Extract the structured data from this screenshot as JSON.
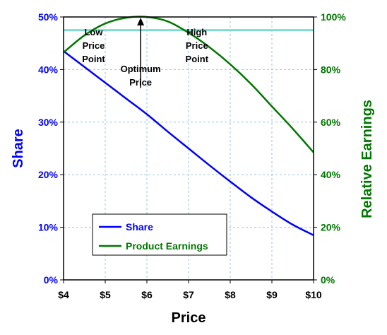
{
  "chart_data": {
    "type": "line",
    "xlabel": "Price",
    "ylabel_left": "Share",
    "ylabel_right": "Relative Earnings",
    "x_ticks": [
      "$4",
      "$5",
      "$6",
      "$7",
      "$8",
      "$9",
      "$10"
    ],
    "xlim": [
      4,
      10
    ],
    "ylim_left": [
      0,
      50
    ],
    "ylim_right": [
      0,
      100
    ],
    "y_ticks_left": [
      "0%",
      "10%",
      "20%",
      "30%",
      "40%",
      "50%"
    ],
    "y_ticks_right": [
      "0%",
      "20%",
      "40%",
      "60%",
      "80%",
      "100%"
    ],
    "grid": true,
    "legend_placement": "bottom-left",
    "colors": {
      "share": "#0000ff",
      "earnings": "#007700",
      "reference": "#7fdcd0",
      "grid": "#9cc6e6",
      "left_axis_text": "#0000ff",
      "right_axis_text": "#007700"
    },
    "series": [
      {
        "name": "Share",
        "axis": "left",
        "x": [
          4.0,
          4.5,
          5.0,
          5.5,
          6.0,
          6.5,
          7.0,
          7.5,
          8.0,
          8.5,
          9.0,
          9.5,
          10.0
        ],
        "values": [
          43.5,
          40.5,
          37.5,
          34.5,
          31.5,
          28.2,
          25.0,
          21.8,
          18.7,
          15.7,
          13.0,
          10.5,
          8.5
        ]
      },
      {
        "name": "Product Earnings",
        "axis": "right",
        "x": [
          4.0,
          4.5,
          5.0,
          5.5,
          6.0,
          6.5,
          7.0,
          7.5,
          8.0,
          8.5,
          9.0,
          9.5,
          10.0
        ],
        "values": [
          86.5,
          93.0,
          97.5,
          99.7,
          100.0,
          98.3,
          94.0,
          88.5,
          82.0,
          74.5,
          66.0,
          57.5,
          48.5
        ]
      }
    ],
    "reference_line": {
      "axis": "left",
      "y": 47.5
    },
    "annotations": [
      {
        "lines": [
          "Low",
          "Price",
          "Point"
        ],
        "x": 4.72,
        "y": 46.5,
        "align": "middle"
      },
      {
        "lines": [
          "High",
          "Price",
          "Point"
        ],
        "x": 7.2,
        "y": 46.5,
        "align": "middle"
      },
      {
        "lines": [
          "Optimum",
          "Price"
        ],
        "x": 5.85,
        "y": 39.5,
        "align": "middle"
      }
    ],
    "optimum_arrow": {
      "x": 5.85,
      "y_from": 36.5,
      "y_to": 50
    },
    "legend": [
      "Share",
      "Product Earnings"
    ]
  }
}
